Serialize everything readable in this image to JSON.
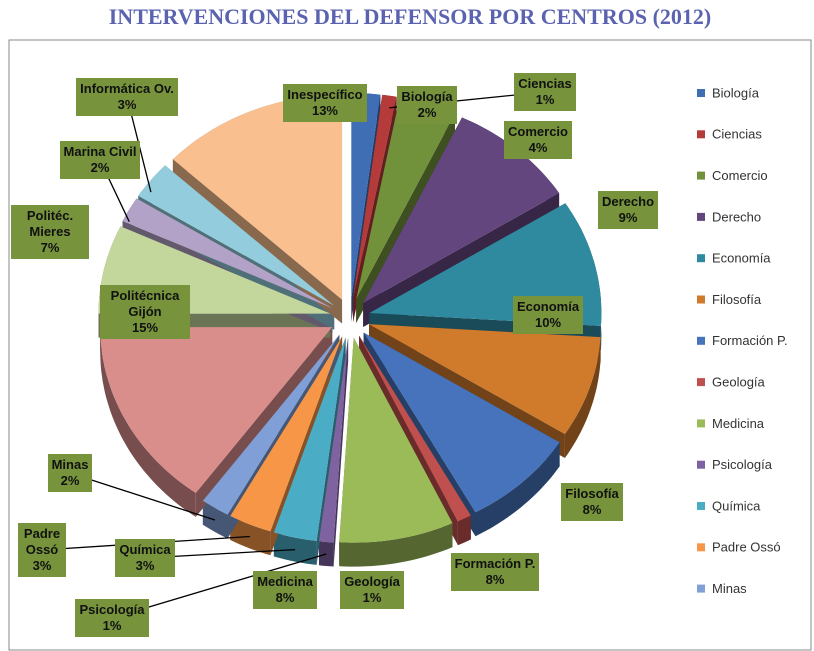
{
  "chart_data": {
    "type": "pie3d",
    "title": "INTERVENCIONES DEL DEFENSOR POR CENTROS (2012)",
    "categories": [
      "Biología",
      "Ciencias",
      "Comercio",
      "Derecho",
      "Economía",
      "Filosofía",
      "Formación P.",
      "Geología",
      "Medicina",
      "Psicología",
      "Química",
      "Padre Ossó",
      "Minas",
      "Politécnica Gijón",
      "Politéc. Mieres",
      "Marina Civil",
      "Informática Ov.",
      "Inespecífico"
    ],
    "values": [
      2,
      1,
      4,
      9,
      10,
      8,
      8,
      1,
      8,
      1,
      3,
      3,
      2,
      15,
      7,
      2,
      3,
      13
    ],
    "value_labels": [
      "2%",
      "1%",
      "4%",
      "9%",
      "10%",
      "8%",
      "8%",
      "1%",
      "8%",
      "1%",
      "3%",
      "3%",
      "2%",
      "15%",
      "7%",
      "2%",
      "3%",
      "13%"
    ],
    "colors": [
      "#3f6eb5",
      "#b53a3a",
      "#71913b",
      "#64467f",
      "#2f8aa0",
      "#d07a2c",
      "#4673bb",
      "#c0504d",
      "#9bbb59",
      "#7f62a0",
      "#4bacc6",
      "#f79646",
      "#7f9fd6",
      "#d98e8c",
      "#c3d69b",
      "#b3a2c7",
      "#93cddd",
      "#fabf8f"
    ],
    "legend": [
      "Biología",
      "Ciencias",
      "Comercio",
      "Derecho",
      "Economía",
      "Filosofía",
      "Formación P.",
      "Geología",
      "Medicina",
      "Psicología",
      "Química",
      "Padre Ossó",
      "Minas"
    ]
  }
}
